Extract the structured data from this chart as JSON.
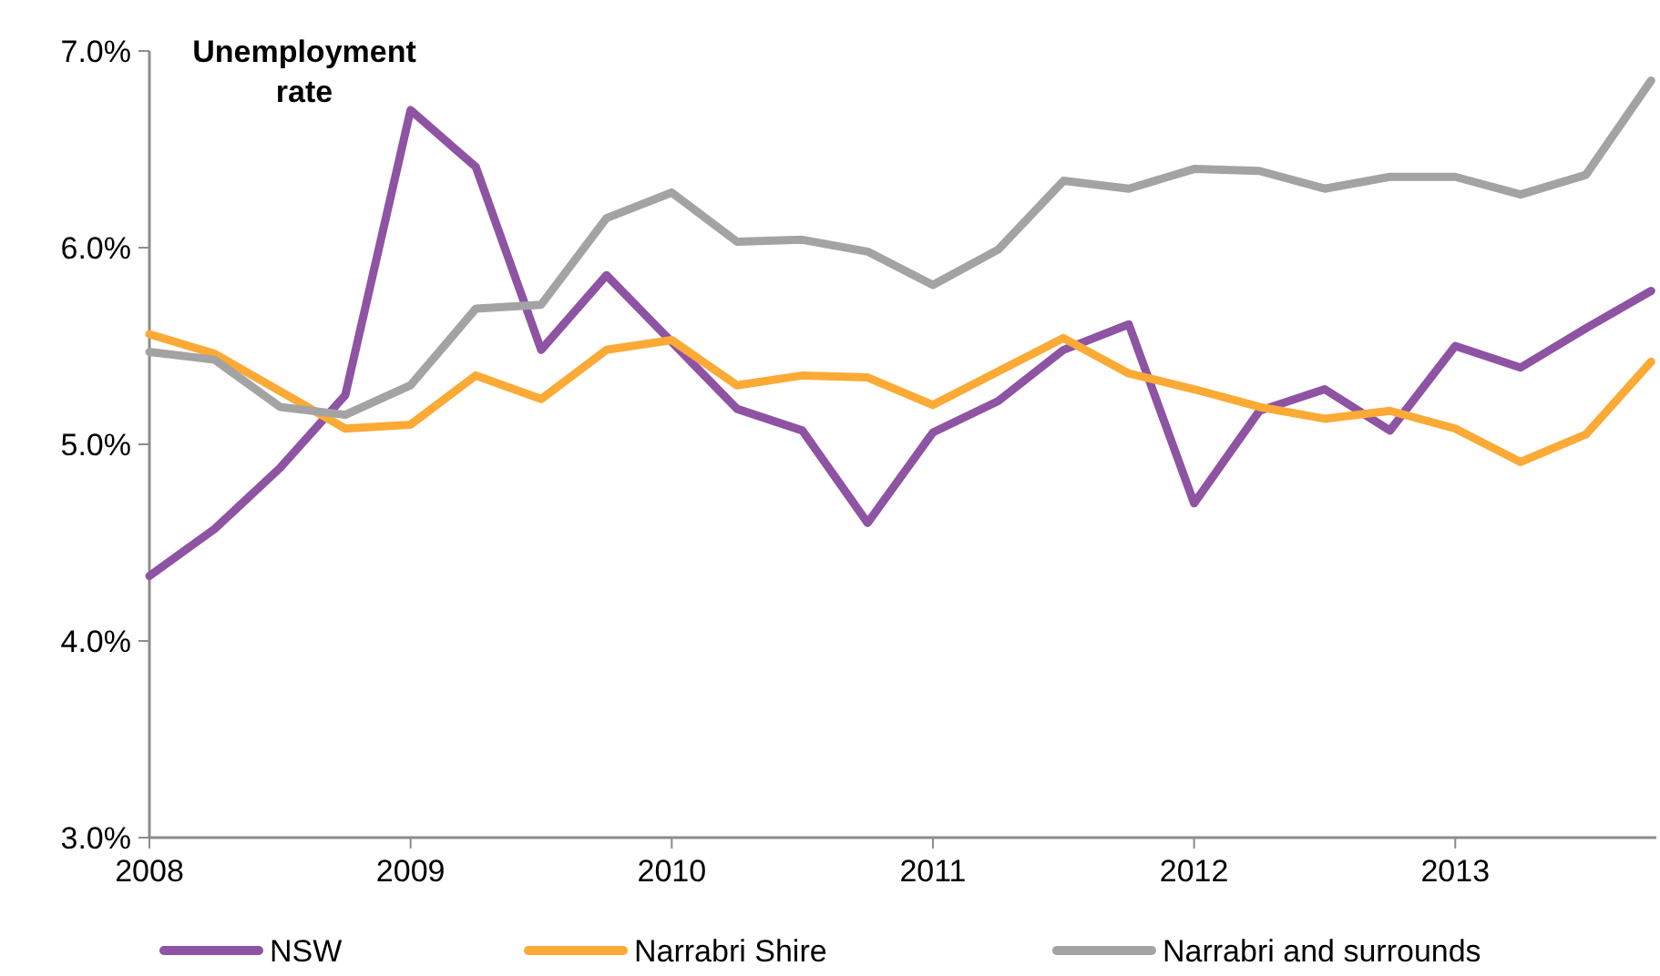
{
  "chart_data": {
    "type": "line",
    "title": "Unemployment rate",
    "x": [
      2008,
      2008.25,
      2008.5,
      2008.75,
      2009,
      2009.25,
      2009.5,
      2009.75,
      2010,
      2010.25,
      2010.5,
      2010.75,
      2011,
      2011.25,
      2011.5,
      2011.75,
      2012,
      2012.25,
      2012.5,
      2012.75,
      2013,
      2013.25,
      2013.5,
      2013.75
    ],
    "series": [
      {
        "name": "NSW",
        "color": "#8e53a3",
        "values": [
          4.33,
          4.57,
          4.88,
          5.25,
          6.7,
          6.41,
          5.48,
          5.86,
          5.52,
          5.18,
          5.07,
          4.6,
          5.06,
          5.22,
          5.48,
          5.61,
          4.7,
          5.17,
          5.28,
          5.07,
          5.5,
          5.39,
          5.59,
          5.78
        ]
      },
      {
        "name": "Narrabri Shire",
        "color": "#fbaa36",
        "values": [
          5.56,
          5.46,
          5.27,
          5.08,
          5.1,
          5.35,
          5.23,
          5.48,
          5.53,
          5.3,
          5.35,
          5.34,
          5.2,
          5.37,
          5.54,
          5.36,
          5.28,
          5.19,
          5.13,
          5.17,
          5.08,
          4.91,
          5.05,
          5.42
        ]
      },
      {
        "name": "Narrabri and surrounds",
        "color": "#a3a3a3",
        "values": [
          5.47,
          5.43,
          5.19,
          5.15,
          5.3,
          5.69,
          5.71,
          6.15,
          6.28,
          6.03,
          6.04,
          5.98,
          5.81,
          5.99,
          6.34,
          6.3,
          6.4,
          6.39,
          6.3,
          6.36,
          6.36,
          6.27,
          6.37,
          6.85
        ]
      }
    ],
    "xlim": [
      2008,
      2013.77
    ],
    "xticks": [
      2008,
      2009,
      2010,
      2011,
      2012,
      2013
    ],
    "ylim": [
      3,
      7
    ],
    "yticks": [
      {
        "value": 3,
        "label": "3.0%"
      },
      {
        "value": 4,
        "label": "4.0%"
      },
      {
        "value": 5,
        "label": "5.0%"
      },
      {
        "value": 6,
        "label": "6.0%"
      },
      {
        "value": 7,
        "label": "7.0%"
      }
    ],
    "grid": false,
    "legend": "bottom",
    "line_style": "solid",
    "marker": "none"
  }
}
